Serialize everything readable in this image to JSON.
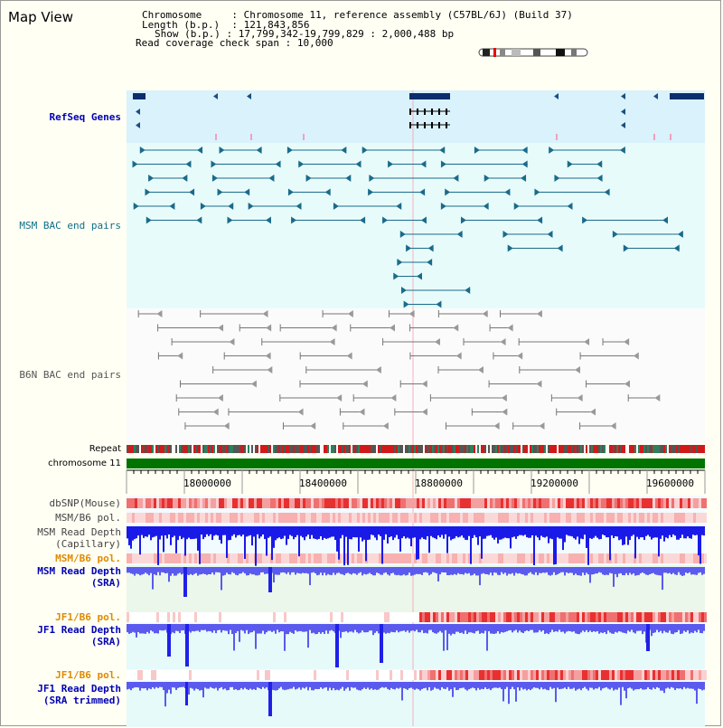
{
  "title": "Map View",
  "info": {
    "chromosome_label": "Chromosome",
    "chromosome_value": "Chromosome 11, reference assembly (C57BL/6J) (Build 37)",
    "length_label": "Length (b.p.)",
    "length_value": "121,843,856",
    "show_label": "Show (b.p.)",
    "show_value": "17,799,342-19,799,829 : 2,000,488 bp",
    "coverage_label": "Read coverage check span",
    "coverage_value": "10,000"
  },
  "tracks": {
    "refseq": "RefSeq Genes",
    "msm_bac": "MSM BAC end pairs",
    "b6n_bac": "B6N BAC end pairs",
    "repeat": "Repeat",
    "chromosome": "chromosome 11",
    "dbsnp": "dbSNP(Mouse)",
    "msm_b6_pol_1": "MSM/B6 pol.",
    "msm_read_cap_1": "MSM Read Depth",
    "msm_read_cap_2": "(Capillary)",
    "msm_b6_pol_2": "MSM/B6 pol.",
    "msm_read_sra_1": "MSM Read Depth",
    "msm_read_sra_2": "(SRA)",
    "jf1_b6_pol_1": "JF1/B6 pol.",
    "jf1_read_sra_1": "JF1 Read Depth",
    "jf1_read_sra_2": "(SRA)",
    "jf1_b6_pol_2": "JF1/B6 pol.",
    "jf1_read_trim_1": "JF1 Read Depth",
    "jf1_read_trim_2": "(SRA trimmed)"
  },
  "axis": {
    "ticks": [
      "18000000",
      "18400000",
      "18800000",
      "19200000",
      "19600000"
    ]
  },
  "colors": {
    "refseq_bg": "#d9f2fb",
    "msm_bg": "#e8fbfb",
    "chrom_bar": "#007300",
    "depth_blue": "#2020e8",
    "pol_red": "#e82020",
    "label_blue": "#0000b4",
    "label_orange": "#e08a00"
  }
}
